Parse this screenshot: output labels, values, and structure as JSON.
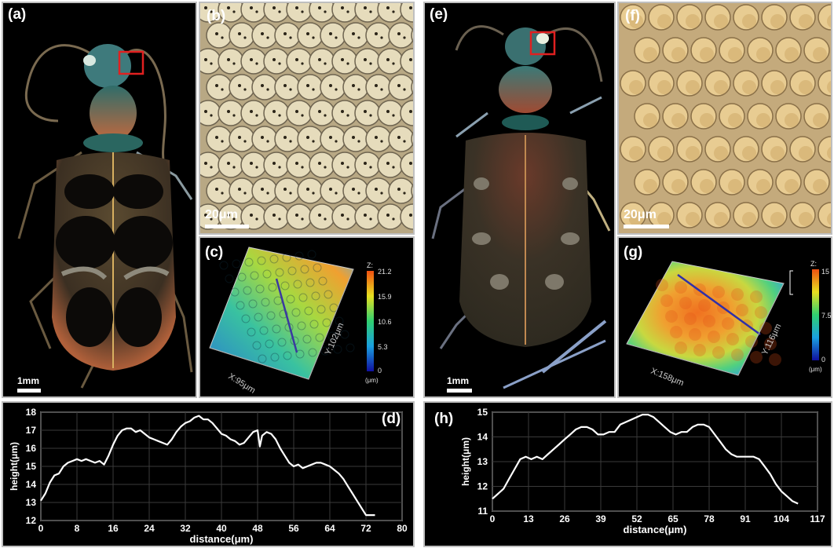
{
  "panels": {
    "a": {
      "label": "(a)",
      "scale": "1mm"
    },
    "b": {
      "label": "(b)",
      "scale": "20μm"
    },
    "c": {
      "label": "(c)",
      "z_label": "Z:",
      "z_ticks": [
        "21.2",
        "15.9",
        "10.6",
        "5.3",
        "0"
      ],
      "z_unit": "(μm)",
      "x_label": "X:95μm",
      "y_label": "Y:102μm"
    },
    "d": {
      "label": "(d)"
    },
    "e": {
      "label": "(e)",
      "scale": "1mm"
    },
    "f": {
      "label": "(f)",
      "scale": "20μm"
    },
    "g": {
      "label": "(g)",
      "z_label": "Z:",
      "z_ticks": [
        "15",
        "7.5",
        "0"
      ],
      "z_unit": "(μm)",
      "x_label": "X:158μm",
      "y_label": "Y:116μm"
    },
    "h": {
      "label": "(h)"
    }
  },
  "chart_data": [
    {
      "type": "line",
      "xlabel": "distance(μm)",
      "ylabel": "height(μm)",
      "xlim": [
        0,
        80
      ],
      "ylim": [
        12,
        18
      ],
      "xticks": [
        "0",
        "8",
        "16",
        "24",
        "32",
        "40",
        "48",
        "56",
        "64",
        "72",
        "80"
      ],
      "yticks": [
        "12",
        "13",
        "14",
        "15",
        "16",
        "17",
        "18"
      ],
      "grid": true,
      "x": [
        0,
        1,
        2,
        3,
        4,
        5,
        6,
        7,
        8,
        9,
        10,
        11,
        12,
        13,
        14,
        15,
        16,
        17,
        18,
        19,
        20,
        21,
        22,
        23,
        24,
        25,
        26,
        27,
        28,
        29,
        30,
        31,
        32,
        33,
        34,
        35,
        36,
        37,
        38,
        39,
        40,
        41,
        42,
        43,
        44,
        45,
        46,
        47,
        48,
        48.5,
        49,
        50,
        51,
        52,
        53,
        54,
        55,
        56,
        57,
        58,
        59,
        60,
        61,
        62,
        63,
        64,
        65,
        66,
        67,
        68,
        69,
        70,
        71,
        72,
        73,
        74
      ],
      "y": [
        13.1,
        13.5,
        14.1,
        14.5,
        14.6,
        15.0,
        15.2,
        15.3,
        15.4,
        15.3,
        15.4,
        15.3,
        15.2,
        15.3,
        15.1,
        15.6,
        16.2,
        16.7,
        17.0,
        17.1,
        17.1,
        16.9,
        17.0,
        16.8,
        16.6,
        16.5,
        16.4,
        16.3,
        16.2,
        16.5,
        16.9,
        17.2,
        17.4,
        17.5,
        17.7,
        17.8,
        17.6,
        17.6,
        17.4,
        17.1,
        16.8,
        16.7,
        16.5,
        16.4,
        16.2,
        16.3,
        16.6,
        16.9,
        17.0,
        16.1,
        16.7,
        16.9,
        16.8,
        16.5,
        16.0,
        15.6,
        15.2,
        15.0,
        15.1,
        14.9,
        15.0,
        15.1,
        15.2,
        15.2,
        15.1,
        15.0,
        14.8,
        14.6,
        14.3,
        13.9,
        13.5,
        13.1,
        12.7,
        12.3,
        12.3,
        12.3
      ]
    },
    {
      "type": "line",
      "xlabel": "distance(μm)",
      "ylabel": "height(μm)",
      "xlim": [
        0,
        117
      ],
      "ylim": [
        11,
        15
      ],
      "xticks": [
        "0",
        "13",
        "26",
        "39",
        "52",
        "65",
        "78",
        "91",
        "104",
        "117"
      ],
      "yticks": [
        "11",
        "12",
        "13",
        "14",
        "15"
      ],
      "grid": true,
      "x": [
        0,
        2,
        4,
        6,
        8,
        10,
        12,
        14,
        16,
        18,
        20,
        22,
        24,
        26,
        28,
        30,
        32,
        34,
        36,
        38,
        40,
        42,
        44,
        46,
        48,
        50,
        52,
        54,
        56,
        58,
        60,
        62,
        64,
        66,
        68,
        70,
        72,
        74,
        76,
        78,
        80,
        82,
        84,
        86,
        88,
        90,
        92,
        94,
        96,
        98,
        100,
        102,
        104,
        106,
        108,
        110
      ],
      "y": [
        11.5,
        11.7,
        11.9,
        12.3,
        12.7,
        13.1,
        13.2,
        13.1,
        13.2,
        13.1,
        13.3,
        13.5,
        13.7,
        13.9,
        14.1,
        14.3,
        14.4,
        14.4,
        14.3,
        14.1,
        14.1,
        14.2,
        14.2,
        14.5,
        14.6,
        14.7,
        14.8,
        14.9,
        14.9,
        14.8,
        14.6,
        14.4,
        14.2,
        14.1,
        14.2,
        14.2,
        14.4,
        14.5,
        14.5,
        14.4,
        14.1,
        13.8,
        13.5,
        13.3,
        13.2,
        13.2,
        13.2,
        13.2,
        13.1,
        12.8,
        12.5,
        12.1,
        11.8,
        11.6,
        11.4,
        11.3
      ]
    }
  ]
}
